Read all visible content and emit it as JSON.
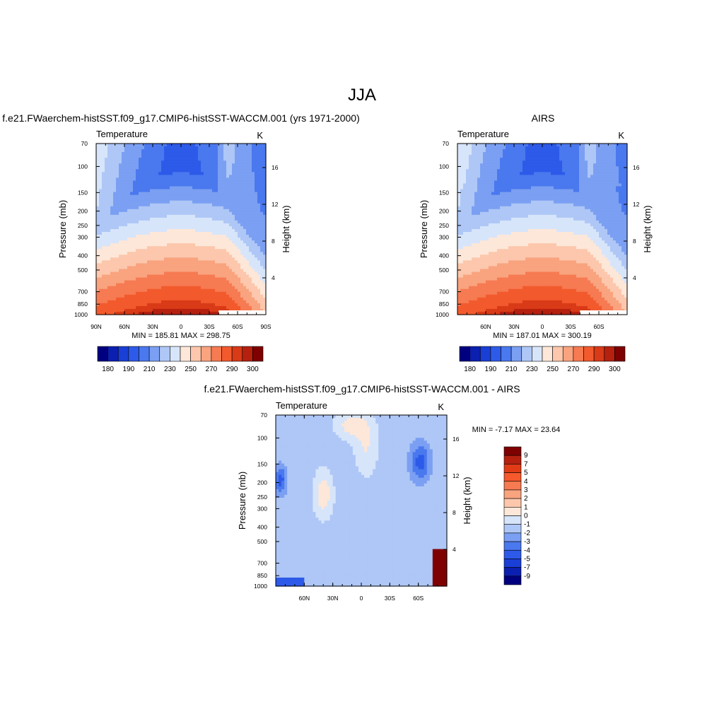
{
  "figure_title": "JJA",
  "chart_data": [
    {
      "type": "heatmap",
      "id": "model",
      "title": "f.e21.FWaerchem-histSST.f09_g17.CMIP6-histSST-WACCM.001 (yrs 1971-2000)",
      "left_label": "Temperature",
      "units_label": "K",
      "ylabel": "Pressure (mb)",
      "y2label": "Height (km)",
      "xticks": [
        "90N",
        "60N",
        "30N",
        "0",
        "30S",
        "60S",
        "90S"
      ],
      "xtick_values": [
        90,
        60,
        30,
        0,
        -30,
        -60,
        -90
      ],
      "xlim": [
        90,
        -90
      ],
      "yticks": [
        "70",
        "100",
        "150",
        "200",
        "250",
        "300",
        "400",
        "500",
        "700",
        "850",
        "1000"
      ],
      "ytick_values": [
        70,
        100,
        150,
        200,
        250,
        300,
        400,
        500,
        700,
        850,
        1000
      ],
      "ylim": [
        1000,
        70
      ],
      "y_scale": "log",
      "y2ticks": [
        "16",
        "12",
        "8",
        "4"
      ],
      "minmax": "MIN = 185.81  MAX = 298.75",
      "colorbar_labels": [
        "180",
        "190",
        "210",
        "230",
        "250",
        "270",
        "290",
        "300"
      ]
    },
    {
      "type": "heatmap",
      "id": "obs",
      "title": "AIRS",
      "left_label": "Temperature",
      "units_label": "K",
      "ylabel": "Pressure (mb)",
      "y2label": "Height (km)",
      "xticks": [
        "60N",
        "30N",
        "0",
        "30S",
        "60S"
      ],
      "xtick_values": [
        60,
        30,
        0,
        -30,
        -60
      ],
      "xlim": [
        90,
        -90
      ],
      "yticks": [
        "70",
        "100",
        "150",
        "200",
        "250",
        "300",
        "400",
        "500",
        "700",
        "850",
        "1000"
      ],
      "ytick_values": [
        70,
        100,
        150,
        200,
        250,
        300,
        400,
        500,
        700,
        850,
        1000
      ],
      "ylim": [
        1000,
        70
      ],
      "y_scale": "log",
      "y2ticks": [
        "16",
        "12",
        "8",
        "4"
      ],
      "minmax": "MIN = 187.01  MAX = 300.19",
      "colorbar_labels": [
        "180",
        "190",
        "210",
        "230",
        "250",
        "270",
        "290",
        "300"
      ]
    },
    {
      "type": "heatmap",
      "id": "diff",
      "title": "f.e21.FWaerchem-histSST.f09_g17.CMIP6-histSST-WACCM.001 - AIRS",
      "left_label": "Temperature",
      "units_label": "K",
      "ylabel": "Pressure (mb)",
      "y2label": "Height (km)",
      "xticks": [
        "60N",
        "30N",
        "0",
        "30S",
        "60S"
      ],
      "xtick_values": [
        60,
        30,
        0,
        -30,
        -60
      ],
      "xlim": [
        90,
        -90
      ],
      "yticks": [
        "70",
        "100",
        "150",
        "200",
        "250",
        "300",
        "400",
        "500",
        "700",
        "850",
        "1000"
      ],
      "ytick_values": [
        70,
        100,
        150,
        200,
        250,
        300,
        400,
        500,
        700,
        850,
        1000
      ],
      "ylim": [
        1000,
        70
      ],
      "y_scale": "log",
      "y2ticks": [
        "16",
        "12",
        "8",
        "4"
      ],
      "minmax": "MIN =  -7.17  MAX =  23.64",
      "colorbar_labels": [
        "9",
        "7",
        "5",
        "4",
        "3",
        "2",
        "1",
        "0",
        "-1",
        "-2",
        "-3",
        "-4",
        "-5",
        "-7",
        "-9"
      ]
    }
  ],
  "colors": {
    "temp_scale": [
      "#00007f",
      "#0b1fb0",
      "#1a3fd6",
      "#2d5ae8",
      "#4a78ee",
      "#7b9ff2",
      "#aec7f6",
      "#d7e5fa",
      "#fde7d8",
      "#fcc7ac",
      "#f9a37f",
      "#f67a52",
      "#f25a2d",
      "#d93a17",
      "#b5200f",
      "#7f0000"
    ],
    "diff_scale": [
      "#7f0000",
      "#b5200f",
      "#e13b16",
      "#f5592c",
      "#f67a52",
      "#f9a37f",
      "#fcc7ac",
      "#fde7d8",
      "#d7e5fa",
      "#aec7f6",
      "#7b9ff2",
      "#4a78ee",
      "#2d5ae8",
      "#1a3fd6",
      "#0b1fb0",
      "#00007f"
    ]
  }
}
